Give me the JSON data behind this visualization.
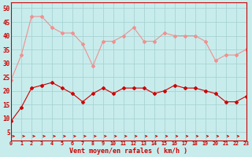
{
  "hours": [
    0,
    1,
    2,
    3,
    4,
    5,
    6,
    7,
    8,
    9,
    10,
    11,
    12,
    13,
    14,
    15,
    16,
    17,
    18,
    19,
    20,
    21,
    22,
    23
  ],
  "rafales": [
    24,
    33,
    47,
    47,
    43,
    41,
    41,
    37,
    29,
    38,
    38,
    40,
    43,
    38,
    38,
    41,
    40,
    40,
    40,
    38,
    31,
    33,
    33,
    35
  ],
  "moyen": [
    9,
    14,
    21,
    22,
    23,
    21,
    19,
    16,
    19,
    21,
    19,
    21,
    21,
    21,
    19,
    20,
    22,
    21,
    21,
    20,
    19,
    16,
    16,
    18
  ],
  "bg_color": "#c8ecec",
  "grid_color": "#a8d4d4",
  "line_color_rafales": "#f09090",
  "line_color_moyen": "#cc0000",
  "marker_color_moyen": "#cc0000",
  "xlabel": "Vent moyen/en rafales ( km/h )",
  "ylabel_ticks": [
    5,
    10,
    15,
    20,
    25,
    30,
    35,
    40,
    45,
    50
  ],
  "xlim": [
    0,
    23
  ],
  "ylim": [
    2,
    52
  ]
}
